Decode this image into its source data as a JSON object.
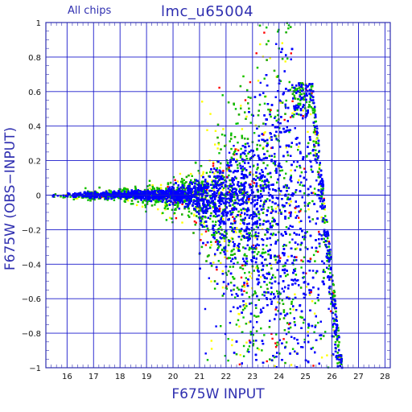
{
  "header": {
    "subtitle": "All chips",
    "title": "lmc_u65004"
  },
  "chart_data": {
    "type": "scatter",
    "title": "lmc_u65004",
    "subtitle": "All chips",
    "xlabel": "F675W INPUT",
    "ylabel": "F675W (OBS−INPUT)",
    "xlim": [
      15.2,
      28.2
    ],
    "ylim": [
      -1,
      1
    ],
    "grid": true,
    "xticks": [
      "16",
      "17",
      "18",
      "19",
      "20",
      "21",
      "22",
      "23",
      "24",
      "25",
      "26",
      "27",
      "28"
    ],
    "yticks": [
      "1",
      "0.8",
      "0.6",
      "0.4",
      "0.2",
      "0",
      "−0.2",
      "−0.4",
      "−0.6",
      "−0.8",
      "−1"
    ],
    "series": [
      {
        "color": "#0000ff",
        "description_points": [
          [
            15.5,
            0.0
          ],
          [
            16.0,
            0.01
          ],
          [
            16.5,
            -0.01
          ],
          [
            17.0,
            0.0
          ],
          [
            17.5,
            0.01
          ],
          [
            18.0,
            -0.01
          ],
          [
            18.5,
            0.0
          ],
          [
            19.0,
            0.01
          ],
          [
            19.5,
            -0.02
          ],
          [
            20.0,
            0.02
          ],
          [
            20.5,
            -0.03
          ],
          [
            21.0,
            0.03
          ],
          [
            21.5,
            -0.04
          ],
          [
            22.0,
            0.05
          ],
          [
            22.5,
            -0.07
          ],
          [
            23.0,
            0.08
          ],
          [
            23.5,
            -0.12
          ],
          [
            24.0,
            0.18
          ],
          [
            24.5,
            -0.2
          ],
          [
            25.0,
            0.4
          ],
          [
            25.0,
            -0.3
          ],
          [
            25.2,
            0.5
          ],
          [
            25.4,
            0.3
          ],
          [
            25.6,
            -0.1
          ],
          [
            25.8,
            -0.4
          ],
          [
            26.0,
            -0.7
          ],
          [
            26.2,
            -0.9
          ]
        ]
      },
      {
        "color": "#00b000"
      },
      {
        "color": "#ff0000"
      },
      {
        "color": "#ffff00"
      }
    ],
    "colors": {
      "axes": "#2f2fb0",
      "grid": "#1a1acc",
      "blue": "#0000ff",
      "green": "#00c000",
      "red": "#ff0000",
      "yellow": "#ffff00"
    }
  }
}
